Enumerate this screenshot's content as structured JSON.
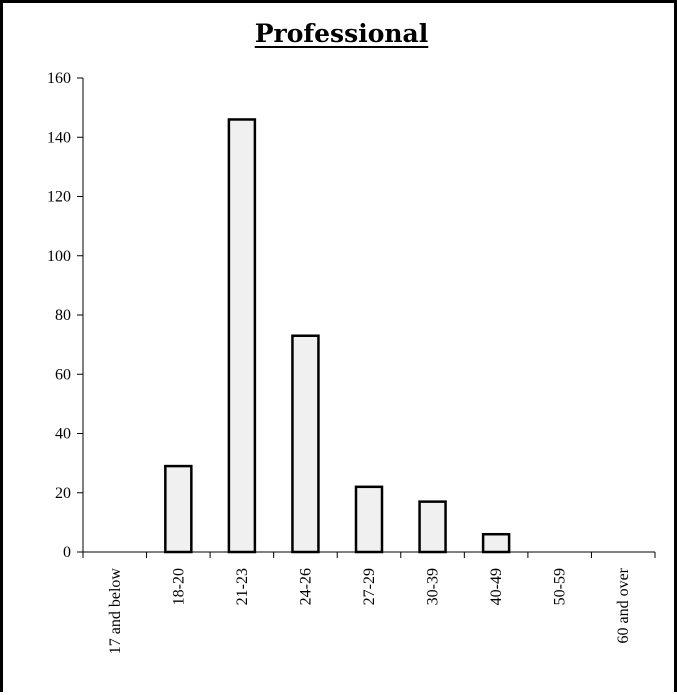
{
  "chart_data": {
    "type": "bar",
    "title": "Professional",
    "xlabel": "",
    "ylabel": "",
    "categories": [
      "17 and below",
      "18-20",
      "21-23",
      "24-26",
      "27-29",
      "30-39",
      "40-49",
      "50-59",
      "60 and over"
    ],
    "values": [
      0,
      29,
      146,
      73,
      22,
      17,
      6,
      0,
      0
    ],
    "ylim": [
      0,
      160
    ],
    "yticks": [
      0,
      20,
      40,
      60,
      80,
      100,
      120,
      140,
      160
    ],
    "grid": false,
    "legend": "none",
    "colors": {
      "bar_fill": "#f0f0f0",
      "bar_stroke": "#000000",
      "axis": "#000000"
    }
  }
}
